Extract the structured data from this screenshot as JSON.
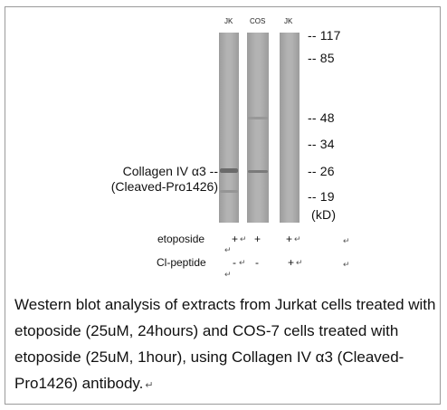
{
  "lanes": [
    "JK",
    "COS",
    "JK"
  ],
  "markers": [
    "117",
    "85",
    "48",
    "34",
    "26",
    "19"
  ],
  "marker_dash": "--",
  "unit": "(kD)",
  "target_line1": "Collagen IV α3 --",
  "target_line2": "(Cleaved-Pro1426)",
  "rows": {
    "etoposide": {
      "label": "etoposide",
      "lane1": "+",
      "lane2": "+",
      "lane3": "+"
    },
    "peptide": {
      "label": "Cl-peptide",
      "lane1": "-",
      "lane2": "-",
      "lane3": "+"
    }
  },
  "para_mark": "↵",
  "caption": "Western blot analysis of extracts from Jurkat cells treated with etoposide (25uM, 24hours) and COS-7 cells treated with etoposide (25uM, 1hour), using Collagen IV α3 (Cleaved-Pro1426) antibody.",
  "colors": {
    "lane": "#a8a8a8",
    "band": "#5a5a5a",
    "frame": "#9a9a9a"
  }
}
